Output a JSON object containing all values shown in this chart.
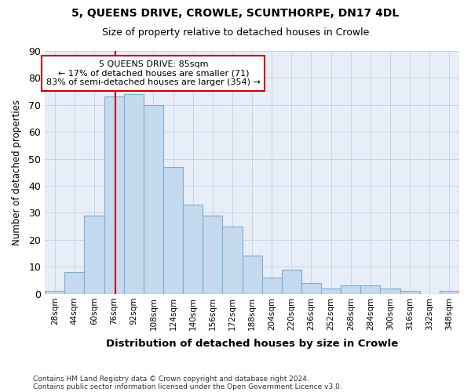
{
  "title1": "5, QUEENS DRIVE, CROWLE, SCUNTHORPE, DN17 4DL",
  "title2": "Size of property relative to detached houses in Crowle",
  "xlabel": "Distribution of detached houses by size in Crowle",
  "ylabel": "Number of detached properties",
  "bar_labels": [
    "28sqm",
    "44sqm",
    "60sqm",
    "76sqm",
    "92sqm",
    "108sqm",
    "124sqm",
    "140sqm",
    "156sqm",
    "172sqm",
    "188sqm",
    "204sqm",
    "220sqm",
    "236sqm",
    "252sqm",
    "268sqm",
    "284sqm",
    "300sqm",
    "316sqm",
    "332sqm",
    "348sqm"
  ],
  "bar_values": [
    1,
    8,
    29,
    73,
    74,
    70,
    47,
    33,
    29,
    25,
    14,
    6,
    9,
    4,
    2,
    3,
    3,
    2,
    1,
    0,
    1
  ],
  "bar_color": "#c5d9ef",
  "bar_edge_color": "#7aafd4",
  "vline_x": 3.56,
  "vline_color": "#cc0000",
  "annotation_text": "5 QUEENS DRIVE: 85sqm\n← 17% of detached houses are smaller (71)\n83% of semi-detached houses are larger (354) →",
  "annotation_box_color": "white",
  "annotation_box_edge": "#cc0000",
  "ylim": [
    0,
    90
  ],
  "yticks": [
    0,
    10,
    20,
    30,
    40,
    50,
    60,
    70,
    80,
    90
  ],
  "grid_color": "#c8d4e8",
  "bg_color": "#e8eef8",
  "footer1": "Contains HM Land Registry data © Crown copyright and database right 2024.",
  "footer2": "Contains public sector information licensed under the Open Government Licence v3.0."
}
